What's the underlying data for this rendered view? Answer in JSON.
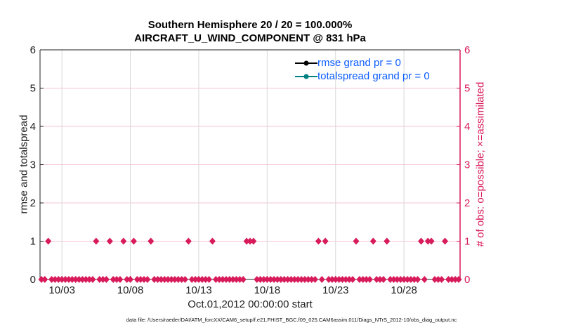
{
  "chart_data": {
    "type": "scatter",
    "title_line1": "Southern Hemisphere 20 / 20 = 100.000%",
    "title_line2": "AIRCRAFT_U_WIND_COMPONENT @ 831 hPa",
    "ylabel_left": "rmse and totalspread",
    "ylabel_right": "# of obs: o=possible; ×=assimilated",
    "xlabel": "Oct.01,2012 00:00:00 start",
    "footer": "data file: /Users/raeder/DAI/ATM_forcXX/CAM6_setup/f.e21.FHIST_BGC.f09_025.CAM6assim.011/Diags_NTrS_2012-10/obs_diag_output.nc",
    "ylim": [
      0,
      6
    ],
    "yticks": [
      "0",
      "1",
      "2",
      "3",
      "4",
      "5",
      "6"
    ],
    "xlim_days": [
      0.4,
      31.1
    ],
    "xticks": [
      {
        "day": 2,
        "label": "10/03"
      },
      {
        "day": 7,
        "label": "10/08"
      },
      {
        "day": 12,
        "label": "10/13"
      },
      {
        "day": 17,
        "label": "10/18"
      },
      {
        "day": 22,
        "label": "10/23"
      },
      {
        "day": 27,
        "label": "10/28"
      }
    ],
    "legend": [
      {
        "label": "rmse grand pr = 0",
        "color": "#000000"
      },
      {
        "label": "totalspread grand pr = 0",
        "color": "#008080"
      }
    ],
    "legend_placement": "top-right",
    "obs_possible": {
      "slot_hours": 6,
      "first_slot": 2,
      "last_slot": 124,
      "ones_at_slots": [
        4,
        18,
        22,
        26,
        29,
        34,
        45,
        52,
        62,
        63,
        64,
        83,
        85,
        94,
        99,
        103,
        113,
        115,
        116,
        120
      ],
      "color": "#d81b5a"
    },
    "colors": {
      "legend_text": "#0a5cff",
      "right_axis": "#d81b5a",
      "grid": "#d8d8d8",
      "hgrid": "#f5c6d6"
    }
  }
}
